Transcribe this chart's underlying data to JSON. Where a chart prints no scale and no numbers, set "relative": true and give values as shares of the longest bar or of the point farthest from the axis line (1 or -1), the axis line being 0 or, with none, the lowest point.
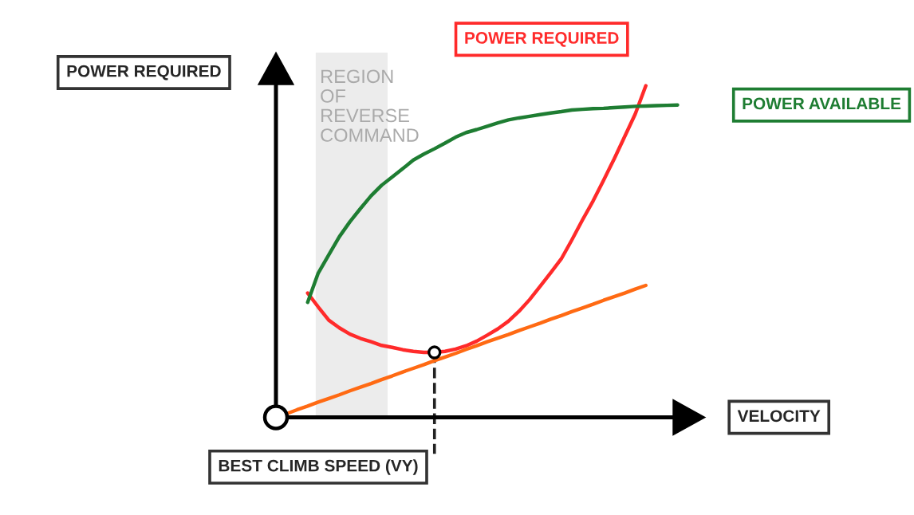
{
  "chart_data": {
    "type": "line",
    "relative": true,
    "xlabel": "VELOCITY",
    "ylabel": "POWER REQUIRED",
    "legend": false,
    "marker": "none",
    "line_style": "solid",
    "categories": [
      null,
      null,
      null,
      null,
      null,
      null,
      null,
      null,
      null,
      null,
      null,
      null,
      null,
      null,
      null,
      null,
      null,
      null,
      null,
      null,
      null,
      null,
      null,
      null,
      null,
      null,
      null,
      null,
      null,
      null,
      null,
      null,
      null,
      null,
      null,
      null,
      null,
      null,
      null,
      null,
      null
    ],
    "series": [
      {
        "name": "POWER REQUIRED",
        "color": "#ff2a2a",
        "values": [
          null,
          null,
          null,
          0.375,
          0.333,
          0.293,
          0.27,
          0.251,
          0.238,
          0.228,
          0.217,
          0.211,
          0.204,
          0.199,
          0.196,
          0.196,
          0.199,
          0.206,
          0.216,
          0.23,
          0.248,
          0.267,
          0.29,
          0.32,
          0.355,
          0.395,
          0.436,
          0.478,
          0.535,
          0.595,
          0.652,
          0.715,
          0.779,
          0.847,
          0.915,
          1,
          null,
          null,
          null,
          null,
          null
        ]
      },
      {
        "name": "POWER AVAILABLE",
        "color": "#1e7d32",
        "values": [
          null,
          null,
          null,
          0.347,
          0.435,
          0.49,
          0.545,
          0.59,
          0.63,
          0.668,
          0.7,
          0.725,
          0.75,
          0.776,
          0.794,
          0.81,
          0.827,
          0.845,
          0.859,
          0.868,
          0.878,
          0.888,
          0.897,
          0.903,
          0.908,
          0.913,
          0.918,
          0.922,
          0.927,
          0.929,
          0.931,
          0.932,
          0.934,
          0.936,
          0.938,
          0.939,
          0.94,
          0.941,
          0.942,
          null,
          null
        ]
      },
      {
        "color": "#ff6a13",
        "values": [
          0,
          0.011,
          0.023,
          0.034,
          0.046,
          0.057,
          0.068,
          0.08,
          0.091,
          0.102,
          0.114,
          0.125,
          0.137,
          0.148,
          0.159,
          0.171,
          0.182,
          0.193,
          0.205,
          0.216,
          0.228,
          0.239,
          0.25,
          0.262,
          0.273,
          0.284,
          0.296,
          0.307,
          0.319,
          0.33,
          0.341,
          0.353,
          0.364,
          0.375,
          0.387,
          0.398,
          null,
          null,
          null,
          null,
          null
        ]
      }
    ],
    "annotations": [
      "REGION\nOF\nREVERSE\nCOMMAND",
      "BEST CLIMB SPEED (VY)"
    ]
  }
}
